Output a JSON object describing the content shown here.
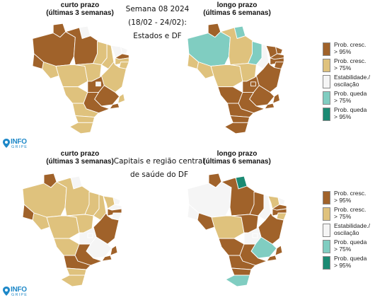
{
  "top": {
    "left_header": {
      "line1": "curto prazo",
      "line2": "(últimas 3 semanas)"
    },
    "center_title": {
      "line1": "Semana 08 2024",
      "line2": "(18/02 - 24/02):",
      "line3": "Estados e DF"
    },
    "right_header": {
      "line1": "longo prazo",
      "line2": "(últimas 6 semanas)"
    }
  },
  "bottom": {
    "left_header": {
      "line1": "curto prazo",
      "line2": "(últimas 3 semanas)"
    },
    "center_title": {
      "line1": "Capitais e região central",
      "line2": "de saúde do DF"
    },
    "right_header": {
      "line1": "longo prazo",
      "line2": "(últimas 6 semanas)"
    }
  },
  "legend": [
    {
      "line1": "Prob. cresc.",
      "line2": "> 95%",
      "color": "#a0622a"
    },
    {
      "line1": "Prob. cresc.",
      "line2": "> 75%",
      "color": "#dfc27d"
    },
    {
      "line1": "Estabilidade./",
      "line2": "oscilação",
      "color": "#f5f5f5"
    },
    {
      "line1": "Prob. queda",
      "line2": "> 75%",
      "color": "#80cdc1"
    },
    {
      "line1": "Prob. queda",
      "line2": "> 95%",
      "color": "#1b8a73"
    }
  ],
  "logo": {
    "text": "INFO",
    "subtext": "GRIPE",
    "color": "#1e88c8"
  },
  "map_colors": {
    "strong_up": "#a0622a",
    "up": "#dfc27d",
    "stable": "#f5f5f5",
    "down": "#80cdc1",
    "strong_down": "#1b8a73"
  },
  "maps": {
    "top_short": {
      "AM": "strong_up",
      "RR": "strong_up",
      "AP": "stable",
      "PA": "strong_up",
      "AC": "strong_up",
      "RO": "up",
      "MT": "up",
      "TO": "up",
      "MA": "up",
      "PI": "up",
      "CE": "stable",
      "NE": "up",
      "RN": "stable",
      "PB": "strong_up",
      "PE": "up",
      "BA": "up",
      "GO": "strong_up",
      "DF": "stable",
      "MS": "up",
      "MG": "strong_up",
      "ES": "up",
      "RJ": "strong_up",
      "SP": "strong_up",
      "PR": "up",
      "SC": "up",
      "RS": "up"
    },
    "top_long": {
      "AM": "down",
      "RR": "strong_up",
      "AP": "down",
      "PA": "up",
      "AC": "up",
      "RO": "up",
      "MT": "up",
      "TO": "up",
      "MA": "down",
      "PI": "stable",
      "CE": "strong_up",
      "NE": "strong_up",
      "RN": "strong_up",
      "PB": "strong_up",
      "PE": "strong_up",
      "BA": "strong_up",
      "GO": "strong_up",
      "DF": "strong_up",
      "MS": "strong_up",
      "MG": "strong_up",
      "ES": "strong_up",
      "RJ": "strong_up",
      "SP": "strong_up",
      "PR": "strong_up",
      "SC": "strong_up",
      "RS": "strong_up"
    },
    "bottom_short": {
      "AM": "up",
      "RR": "strong_up",
      "AP": "stable",
      "PA": "up",
      "AC": "strong_up",
      "RO": "up",
      "MT": "up",
      "TO": "up",
      "MA": "up",
      "PI": "up",
      "CE": "up",
      "NE": "stable",
      "RN": "stable",
      "PB": "stable",
      "PE": "strong_up",
      "BA": "strong_up",
      "GO": "stable",
      "DF": "stable",
      "MS": "up",
      "MG": "stable",
      "ES": "strong_up",
      "RJ": "strong_up",
      "SP": "strong_up",
      "PR": "strong_up",
      "SC": "up",
      "RS": "up"
    },
    "bottom_long": {
      "AM": "stable",
      "RR": "strong_up",
      "AP": "strong_down",
      "PA": "strong_up",
      "AC": "stable",
      "RO": "strong_up",
      "MT": "up",
      "TO": "strong_up",
      "MA": "strong_up",
      "PI": "stable",
      "CE": "up",
      "NE": "up",
      "RN": "stable",
      "PB": "strong_up",
      "PE": "strong_up",
      "BA": "strong_up",
      "GO": "stable",
      "DF": "stable",
      "MS": "strong_up",
      "MG": "down",
      "ES": "strong_up",
      "RJ": "strong_up",
      "SP": "strong_up",
      "PR": "strong_up",
      "SC": "strong_up",
      "RS": "down"
    }
  }
}
